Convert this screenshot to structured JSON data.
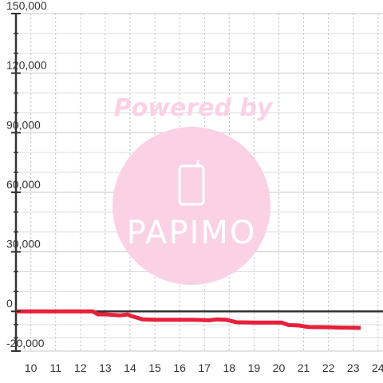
{
  "chart_data": {
    "type": "line",
    "title": "",
    "xlabel": "",
    "ylabel": "",
    "xlim": [
      9.4,
      24.2
    ],
    "ylim": [
      -20000,
      150000
    ],
    "x_ticks": [
      10,
      11,
      12,
      13,
      14,
      15,
      16,
      17,
      18,
      19,
      20,
      21,
      22,
      23,
      24
    ],
    "x_tick_labels": [
      "10",
      "11",
      "12",
      "13",
      "14",
      "15",
      "16",
      "17",
      "18",
      "19",
      "20",
      "21",
      "22",
      "23",
      "24"
    ],
    "y_ticks": [
      -20000,
      0,
      30000,
      60000,
      90000,
      120000,
      150000
    ],
    "y_tick_labels": [
      "-20,000",
      "0",
      "30,000",
      "60,000",
      "90,000",
      "120,000",
      "150,000"
    ],
    "grid": true,
    "legend": "none",
    "series": [
      {
        "color": "#e8203a",
        "x": [
          9.4,
          12.5,
          12.7,
          13.0,
          13.6,
          13.9,
          14.1,
          14.5,
          15.0,
          16.0,
          16.6,
          17.2,
          17.5,
          17.9,
          18.3,
          19.0,
          19.7,
          20.1,
          20.4,
          20.8,
          21.2,
          22.0,
          22.5,
          23.3
        ],
        "y": [
          0,
          0,
          -1500,
          -1500,
          -2000,
          -1600,
          -2500,
          -4000,
          -4200,
          -4200,
          -4200,
          -4500,
          -4000,
          -4300,
          -5500,
          -5600,
          -5600,
          -5600,
          -6900,
          -7100,
          -7900,
          -8000,
          -8200,
          -8300
        ]
      }
    ],
    "watermark": {
      "text": "Powered by",
      "logo": "PAPIMO",
      "logo_icon": "phone-icon",
      "text_color": "#fbd1e6",
      "circle_color": "#fbd1e6",
      "logo_color": "#ffffff"
    }
  }
}
